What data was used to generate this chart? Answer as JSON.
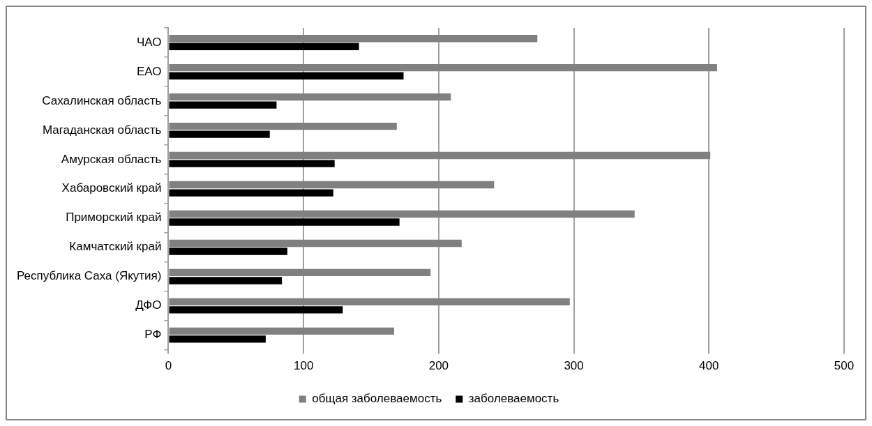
{
  "chart_data": {
    "type": "bar",
    "orientation": "horizontal",
    "categories": [
      "ЧАО",
      "ЕАО",
      "Сахалинская область",
      "Магаданская область",
      "Амурская область",
      "Хабаровский край",
      "Приморский край",
      "Камчатский край",
      "Республика Саха (Якутия)",
      "ДФО",
      "РФ"
    ],
    "series": [
      {
        "name": "общая заболеваемость",
        "color": "#808080",
        "values": [
          273,
          406,
          209,
          169,
          401,
          241,
          345,
          217,
          194,
          297,
          167
        ]
      },
      {
        "name": "заболеваемость",
        "color": "#000000",
        "values": [
          141,
          174,
          80,
          75,
          123,
          122,
          171,
          88,
          84,
          129,
          72
        ]
      }
    ],
    "xlim": [
      0,
      500
    ],
    "xticks": [
      0,
      100,
      200,
      300,
      400,
      500
    ],
    "grid": "x",
    "legend": "bottom"
  }
}
